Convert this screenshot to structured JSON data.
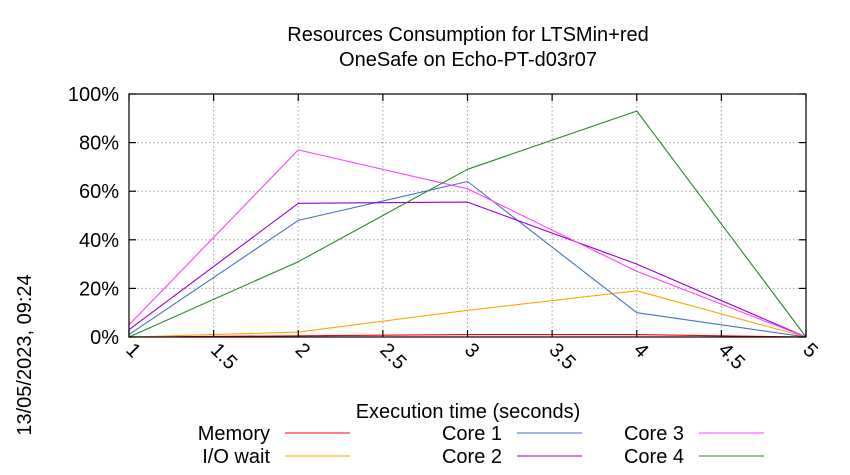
{
  "chart_data": {
    "type": "line",
    "title": "Resources Consumption for LTSMin+red",
    "subtitle": "OneSafe on Echo-PT-d03r07",
    "xlabel": "Execution time (seconds)",
    "ylabel": "",
    "xlim": [
      1,
      5
    ],
    "ylim": [
      0,
      100
    ],
    "x_ticks": [
      "1",
      "1.5",
      "2",
      "2.5",
      "3",
      "3.5",
      "4",
      "4.5",
      "5"
    ],
    "x_tick_values": [
      1,
      1.5,
      2,
      2.5,
      3,
      3.5,
      4,
      4.5,
      5
    ],
    "y_ticks": [
      "0%",
      "20%",
      "40%",
      "60%",
      "80%",
      "100%"
    ],
    "y_tick_values": [
      0,
      20,
      40,
      60,
      80,
      100
    ],
    "grid": true,
    "legend_position": "bottom",
    "timestamp": "13/05/2023, 09:24",
    "x": [
      1,
      2,
      3,
      4,
      5
    ],
    "series": [
      {
        "name": "Memory",
        "color": "#ff0000",
        "values": [
          0,
          0.5,
          1,
          1,
          0
        ]
      },
      {
        "name": "I/O wait",
        "color": "#ffa500",
        "values": [
          0,
          2,
          11,
          19,
          0
        ]
      },
      {
        "name": "Core 1",
        "color": "#4472c4",
        "values": [
          1,
          48,
          64,
          10,
          0
        ]
      },
      {
        "name": "Core 2",
        "color": "#9400d3",
        "values": [
          3,
          55,
          55.5,
          30,
          0
        ]
      },
      {
        "name": "Core 3",
        "color": "#ff40ff",
        "values": [
          5,
          77,
          61,
          27,
          0
        ]
      },
      {
        "name": "Core 4",
        "color": "#228b22",
        "values": [
          0,
          31,
          69,
          93,
          0
        ]
      }
    ]
  }
}
